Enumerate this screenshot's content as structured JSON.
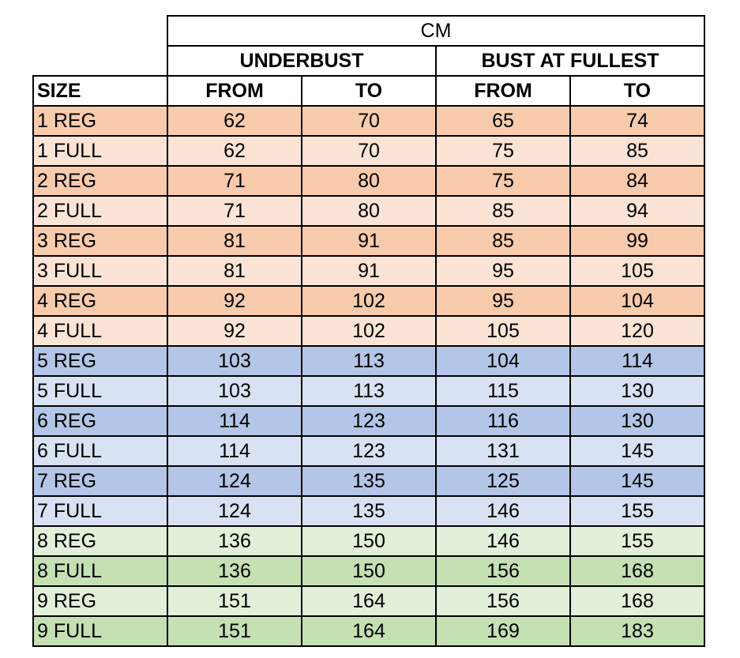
{
  "header": {
    "unit": "CM",
    "groups": [
      "UNDERBUST",
      "BUST AT FULLEST"
    ],
    "size_label": "SIZE",
    "subheads": [
      "FROM",
      "TO",
      "FROM",
      "TO"
    ]
  },
  "rows": [
    {
      "size": "1 REG",
      "values": [
        "62",
        "70",
        "65",
        "74"
      ],
      "bg": "#f7cbac"
    },
    {
      "size": "1 FULL",
      "values": [
        "62",
        "70",
        "75",
        "85"
      ],
      "bg": "#fbe4d5"
    },
    {
      "size": "2 REG",
      "values": [
        "71",
        "80",
        "75",
        "84"
      ],
      "bg": "#f7cbac"
    },
    {
      "size": "2 FULL",
      "values": [
        "71",
        "80",
        "85",
        "94"
      ],
      "bg": "#fbe4d5"
    },
    {
      "size": "3 REG",
      "values": [
        "81",
        "91",
        "85",
        "99"
      ],
      "bg": "#f7cbac"
    },
    {
      "size": "3 FULL",
      "values": [
        "81",
        "91",
        "95",
        "105"
      ],
      "bg": "#fbe4d5"
    },
    {
      "size": "4 REG",
      "values": [
        "92",
        "102",
        "95",
        "104"
      ],
      "bg": "#f7cbac"
    },
    {
      "size": "4 FULL",
      "values": [
        "92",
        "102",
        "105",
        "120"
      ],
      "bg": "#fbe4d5"
    },
    {
      "size": "5 REG",
      "values": [
        "103",
        "113",
        "104",
        "114"
      ],
      "bg": "#b4c6e7"
    },
    {
      "size": "5 FULL",
      "values": [
        "103",
        "113",
        "115",
        "130"
      ],
      "bg": "#d9e2f3"
    },
    {
      "size": "6 REG",
      "values": [
        "114",
        "123",
        "116",
        "130"
      ],
      "bg": "#b4c6e7"
    },
    {
      "size": "6 FULL",
      "values": [
        "114",
        "123",
        "131",
        "145"
      ],
      "bg": "#d9e2f3"
    },
    {
      "size": "7 REG",
      "values": [
        "124",
        "135",
        "125",
        "145"
      ],
      "bg": "#b4c6e7"
    },
    {
      "size": "7 FULL",
      "values": [
        "124",
        "135",
        "146",
        "155"
      ],
      "bg": "#d9e2f3"
    },
    {
      "size": "8 REG",
      "values": [
        "136",
        "150",
        "146",
        "155"
      ],
      "bg": "#e2efd9"
    },
    {
      "size": "8 FULL",
      "values": [
        "136",
        "150",
        "156",
        "168"
      ],
      "bg": "#c5e0b3"
    },
    {
      "size": "9 REG",
      "values": [
        "151",
        "164",
        "156",
        "168"
      ],
      "bg": "#e2efd9"
    },
    {
      "size": "9 FULL",
      "values": [
        "151",
        "164",
        "169",
        "183"
      ],
      "bg": "#c5e0b3"
    }
  ]
}
